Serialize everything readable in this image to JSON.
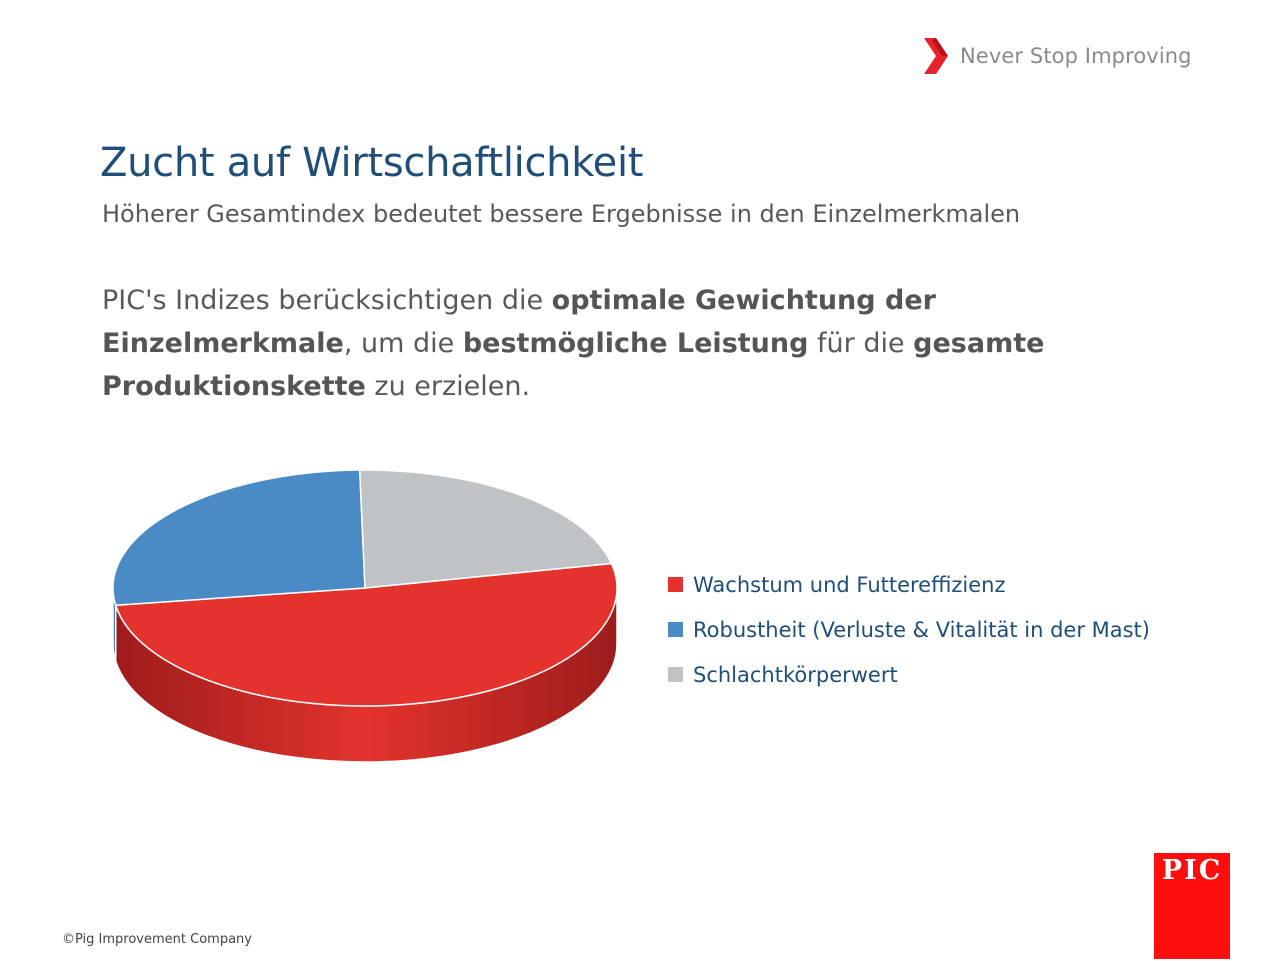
{
  "header": {
    "tagline": "Never Stop Improving"
  },
  "slide": {
    "title": "Zucht auf Wirtschaftlichkeit",
    "subtitle": "Höherer Gesamtindex bedeutet bessere Ergebnisse in den Einzelmerkmalen",
    "body": {
      "p1": "PIC's Indizes berücksichtigen die ",
      "b1": "optimale Gewichtung der Einzelmerkmale",
      "p2": ", um die ",
      "b2": "bestmögliche Leistung",
      "p3": " für die ",
      "b3": "gesamte Produktionskette",
      "p4": " zu erzielen."
    }
  },
  "chart_data": {
    "type": "pie",
    "style": "3d",
    "categories": [
      "Wachstum und Futtereffizienz",
      "Robustheit (Verluste & Vitalität in der Mast)",
      "Schlachtkörperwert"
    ],
    "values": [
      51,
      27,
      22
    ],
    "colors": [
      "#e3332c",
      "#4a8ac5",
      "#bfc3c5"
    ],
    "side_colors": [
      "#9e1c1c",
      "#2e5f8c",
      "#4a4e50"
    ],
    "legend_position": "right"
  },
  "footer": {
    "copyright": "©Pig Improvement Company",
    "logo_text": "PIC"
  }
}
